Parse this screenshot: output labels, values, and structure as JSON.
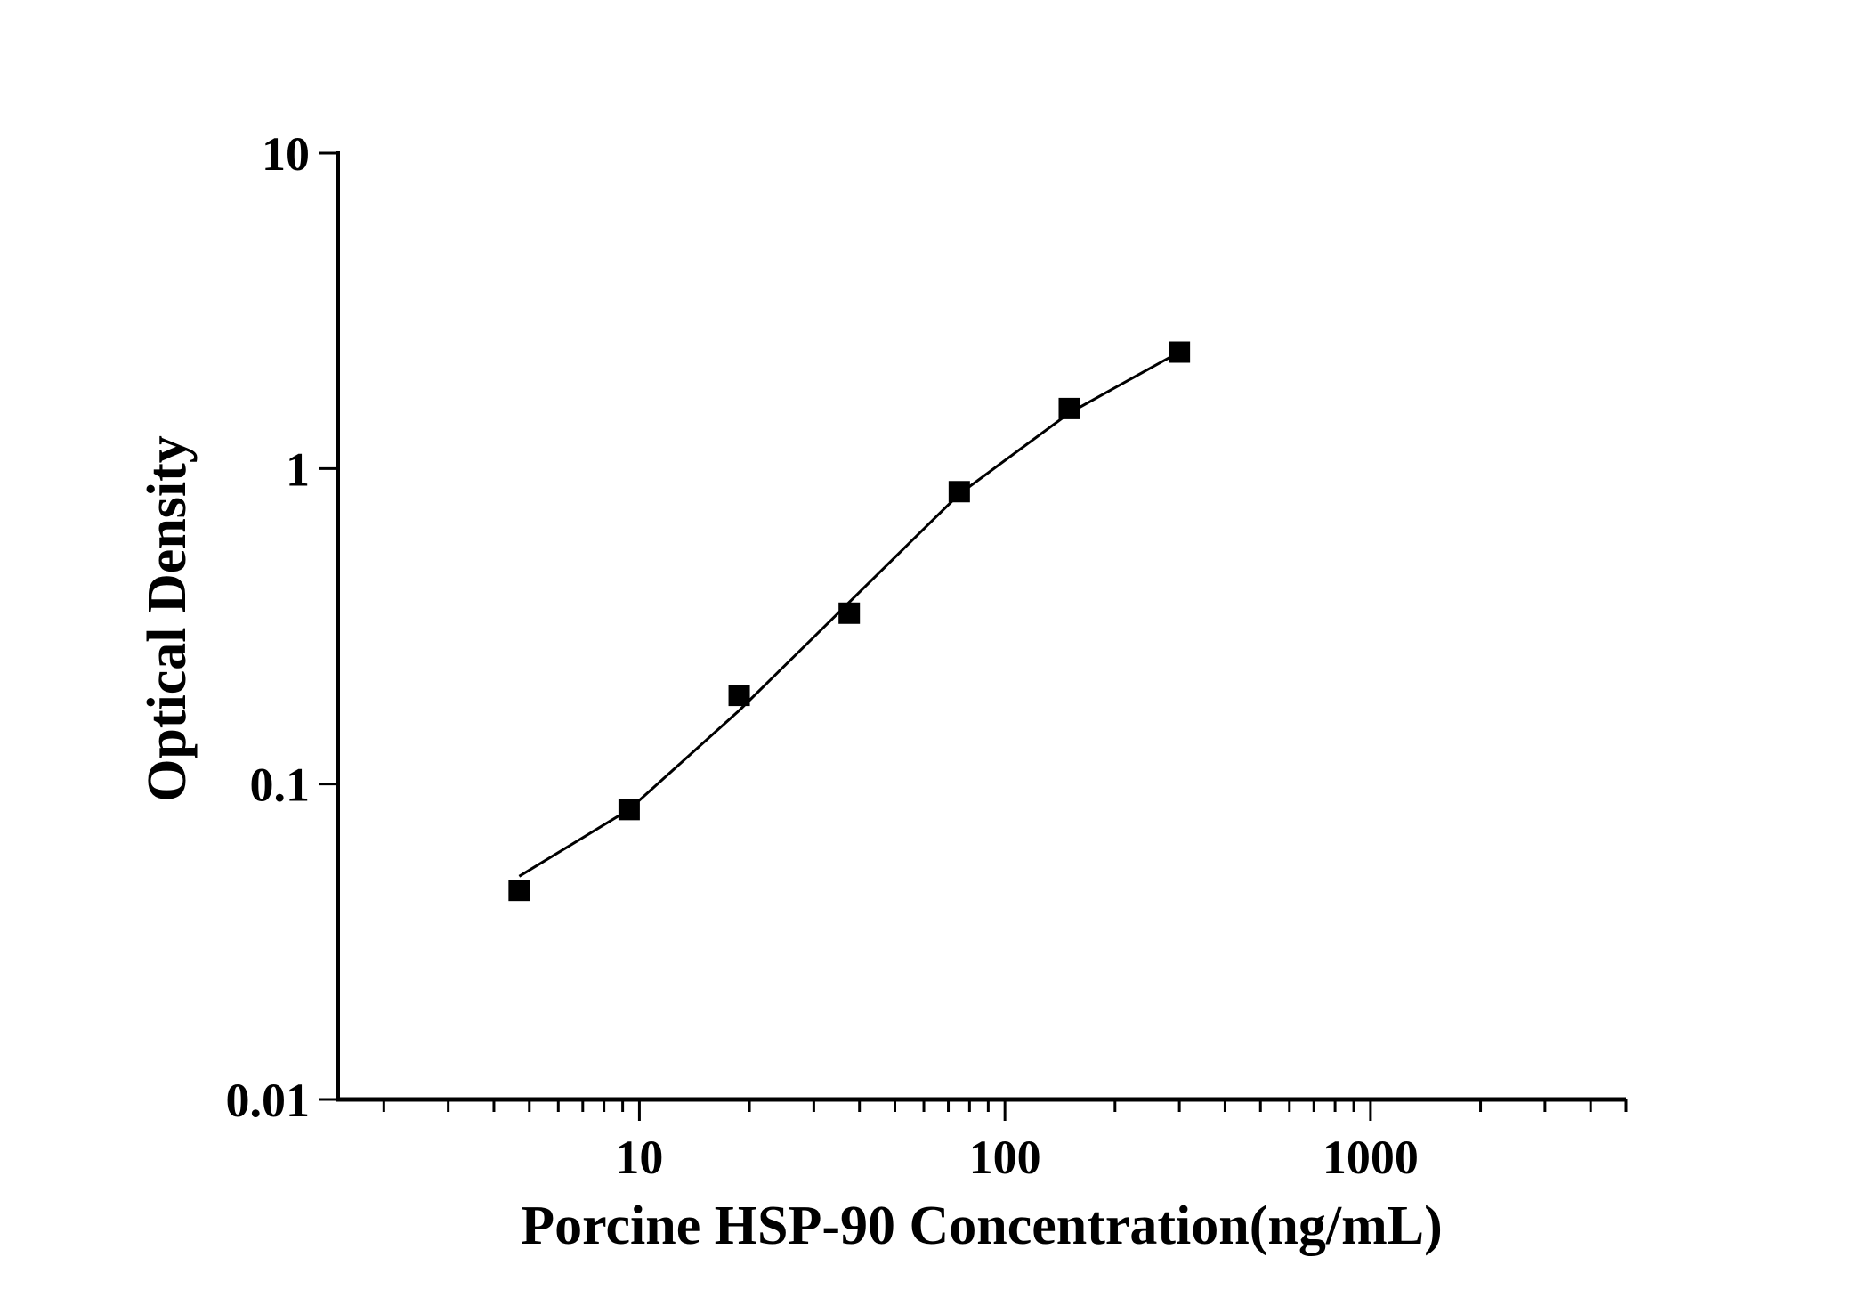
{
  "chart_data": {
    "type": "scatter",
    "title": "",
    "xlabel": "Porcine HSP-90 Concentration(ng/mL)",
    "ylabel": "Optical Density",
    "xscale": "log",
    "yscale": "log",
    "xlim": [
      1.5,
      5000
    ],
    "ylim": [
      0.01,
      10
    ],
    "x_ticks": [
      10,
      100,
      1000
    ],
    "x_tick_labels": [
      "10",
      "100",
      "1000"
    ],
    "y_ticks": [
      0.01,
      0.1,
      1,
      10
    ],
    "y_tick_labels": [
      "0.01",
      "0.1",
      "1",
      "10"
    ],
    "grid": false,
    "legend": "none",
    "marker": "square",
    "color": "#000000",
    "series": [
      {
        "x": [
          4.69,
          9.375,
          18.75,
          37.5,
          75,
          150,
          300
        ],
        "y": [
          0.046,
          0.083,
          0.191,
          0.348,
          0.845,
          1.55,
          2.34
        ]
      }
    ],
    "fit_curve": {
      "x": [
        4.69,
        9.375,
        18.75,
        37.5,
        75,
        150,
        300
      ],
      "y": [
        0.051,
        0.083,
        0.171,
        0.377,
        0.83,
        1.5,
        2.34
      ]
    }
  }
}
